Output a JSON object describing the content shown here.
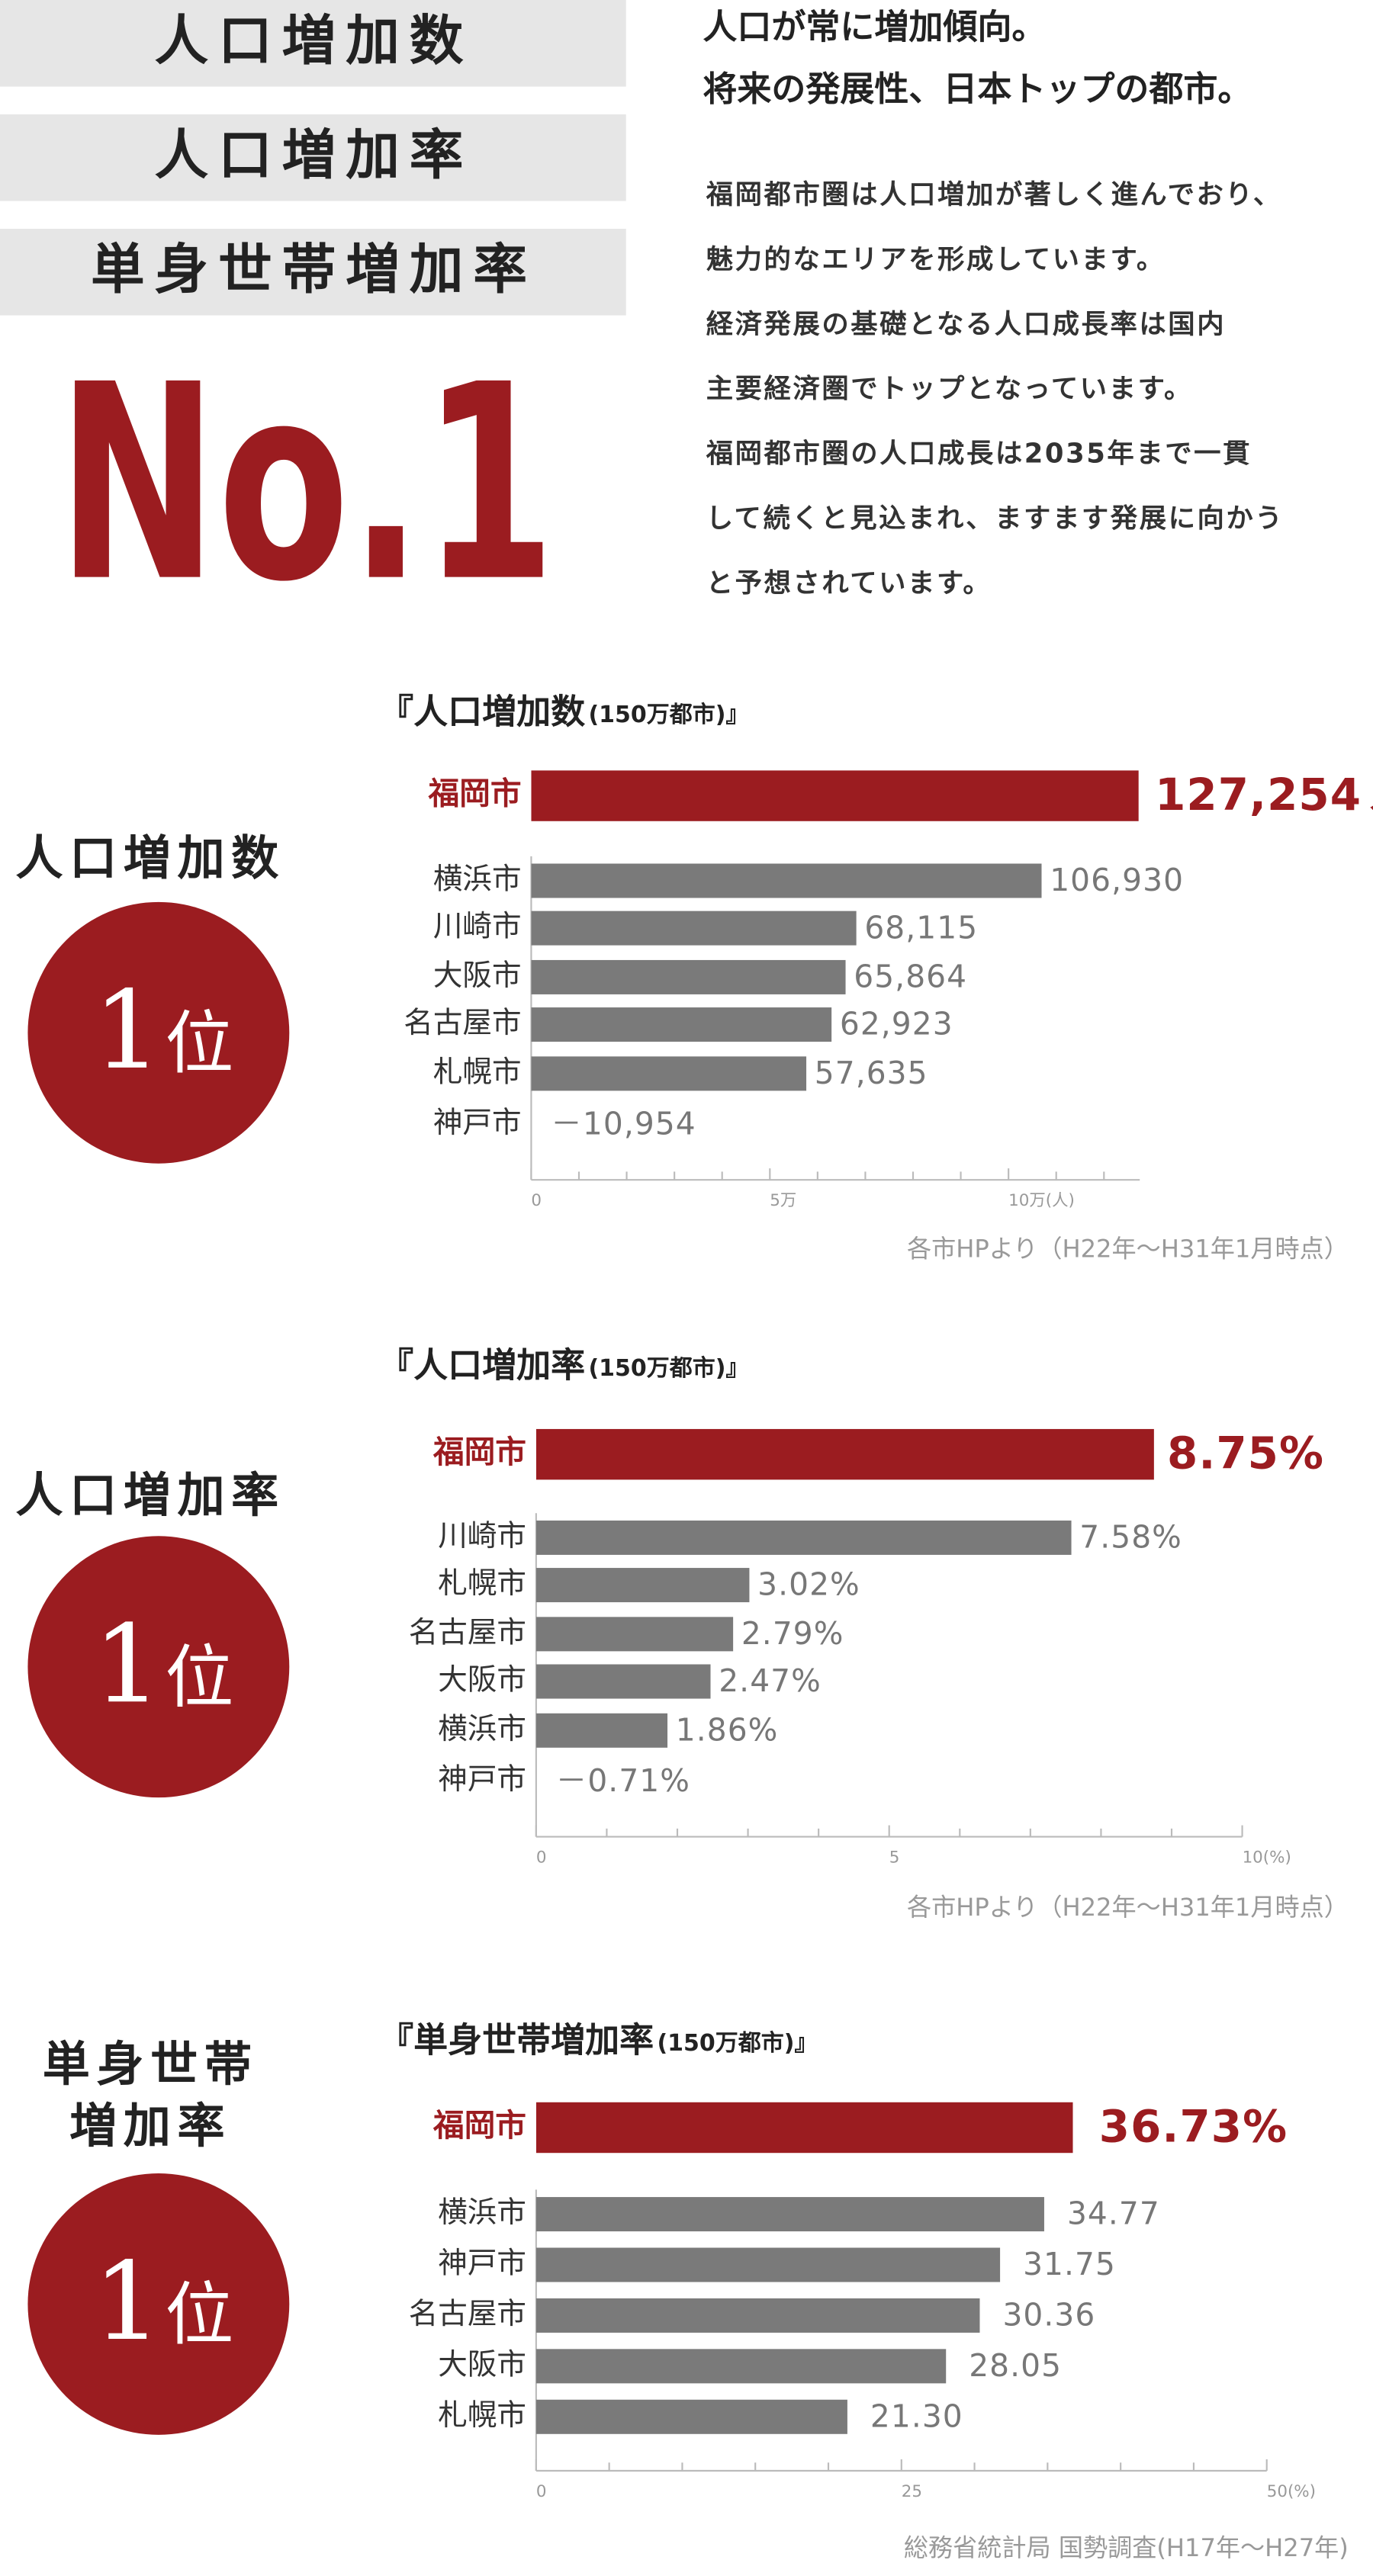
{
  "header": {
    "badges": [
      "人口増加数",
      "人口増加率",
      "単身世帯増加率"
    ],
    "headline_number": "No.1",
    "headline": [
      "人口が常に増加傾向。",
      "将来の発展性、日本トップの都市。"
    ],
    "body": [
      "福岡都市圏は人口増加が著しく進んでおり、",
      "魅力的なエリアを形成しています。",
      "経済発展の基礎となる人口成長率は国内",
      "主要経済圏でトップとなっています。",
      "福岡都市圏の人口成長は2035年まで一貫",
      "して続くと見込まれ、ますます発展に向かう",
      "と予想されています。"
    ]
  },
  "chart_data": [
    {
      "type": "bar",
      "orientation": "horizontal",
      "rank_title": [
        "人口増加数"
      ],
      "rank_number": 1,
      "rank_suffix": "位",
      "title": "『人口増加数",
      "title_note": "(150万都市)』",
      "categories": [
        "福岡市",
        "横浜市",
        "川崎市",
        "大阪市",
        "名古屋市",
        "札幌市",
        "神戸市"
      ],
      "values": [
        127254,
        106930,
        68115,
        65864,
        62923,
        57635,
        -10954
      ],
      "value_labels": [
        "127,254",
        "106,930",
        "68,115",
        "65,864",
        "62,923",
        "57,635",
        "－10,954"
      ],
      "unit": "人",
      "color": "#7a7a7a",
      "highlight_color": "#9b1c20",
      "xlim": [
        0,
        127500
      ],
      "xticks": [
        0,
        {
          "value": 50000,
          "label": "5万"
        },
        {
          "value": 100000,
          "label": "10万(人)"
        }
      ],
      "minor_xticks": [
        10000,
        20000,
        30000,
        40000,
        60000,
        70000,
        80000,
        90000,
        110000,
        120000
      ],
      "source": "各市HPより（H22年～H31年1月時点）"
    },
    {
      "type": "bar",
      "orientation": "horizontal",
      "rank_title": [
        "人口増加率"
      ],
      "rank_number": 1,
      "rank_suffix": "位",
      "title": "『人口増加率",
      "title_note": "(150万都市)』",
      "categories": [
        "福岡市",
        "川崎市",
        "札幌市",
        "名古屋市",
        "大阪市",
        "横浜市",
        "神戸市"
      ],
      "values": [
        8.75,
        7.58,
        3.02,
        2.79,
        2.47,
        1.86,
        -0.71
      ],
      "value_labels": [
        "8.75%",
        "7.58%",
        "3.02%",
        "2.79%",
        "2.47%",
        "1.86%",
        "－0.71%"
      ],
      "color": "#7a7a7a",
      "highlight_color": "#9b1c20",
      "xlim": [
        0,
        10
      ],
      "xticks": [
        0,
        5,
        {
          "value": 10,
          "label": "10(%)"
        }
      ],
      "minor_xticks": [
        1,
        2,
        3,
        4,
        6,
        7,
        8,
        9
      ],
      "source": "各市HPより（H22年～H31年1月時点）"
    },
    {
      "type": "bar",
      "orientation": "horizontal",
      "rank_title": [
        "単身世帯",
        "増加率"
      ],
      "rank_number": 1,
      "rank_suffix": "位",
      "title": "『単身世帯増加率",
      "title_note": "(150万都市)』",
      "categories": [
        "福岡市",
        "横浜市",
        "神戸市",
        "名古屋市",
        "大阪市",
        "札幌市"
      ],
      "values": [
        36.73,
        34.77,
        31.75,
        30.36,
        28.05,
        21.3
      ],
      "value_labels": [
        "36.73%",
        "34.77",
        "31.75",
        "30.36",
        "28.05",
        "21.30"
      ],
      "color": "#7a7a7a",
      "highlight_color": "#9b1c20",
      "xlim": [
        0,
        50
      ],
      "xticks": [
        0,
        25,
        {
          "value": 50,
          "label": "50(%)"
        }
      ],
      "minor_xticks": [
        5,
        10,
        15,
        20,
        30,
        35,
        40,
        45
      ],
      "source": "総務省統計局 国勢調査(H17年～H27年)"
    }
  ]
}
